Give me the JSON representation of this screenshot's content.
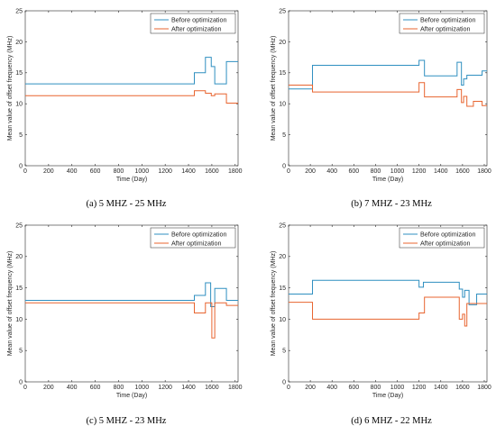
{
  "colors": {
    "before": "#2f8fc0",
    "after": "#e8642f",
    "axis": "#262626"
  },
  "chart_data": [
    {
      "type": "line",
      "caption": "(a) 5 MHZ - 25 MHz",
      "xlabel": "Time (Day)",
      "ylabel": "Mean value of offset frequency (MHz)",
      "xlim": [
        0,
        1825
      ],
      "ylim": [
        0,
        25
      ],
      "xticks": [
        0,
        200,
        400,
        600,
        800,
        1000,
        1200,
        1400,
        1600,
        1800
      ],
      "yticks": [
        0,
        5,
        10,
        15,
        20,
        25
      ],
      "grid": false,
      "legend": "top-right",
      "series": [
        {
          "name": "Before optimization",
          "color": "before",
          "points": [
            [
              0,
              13.2
            ],
            [
              1450,
              13.2
            ],
            [
              1450,
              15.0
            ],
            [
              1545,
              15.0
            ],
            [
              1545,
              17.5
            ],
            [
              1595,
              17.5
            ],
            [
              1595,
              16.0
            ],
            [
              1625,
              16.0
            ],
            [
              1625,
              13.2
            ],
            [
              1725,
              13.2
            ],
            [
              1725,
              16.8
            ],
            [
              1825,
              16.8
            ]
          ]
        },
        {
          "name": "After optimization",
          "color": "after",
          "points": [
            [
              0,
              11.3
            ],
            [
              1450,
              11.3
            ],
            [
              1450,
              12.1
            ],
            [
              1545,
              12.1
            ],
            [
              1545,
              11.7
            ],
            [
              1595,
              11.7
            ],
            [
              1595,
              11.3
            ],
            [
              1625,
              11.3
            ],
            [
              1625,
              11.6
            ],
            [
              1725,
              11.6
            ],
            [
              1725,
              10.1
            ],
            [
              1825,
              10.1
            ]
          ]
        }
      ]
    },
    {
      "type": "line",
      "caption": "(b) 7 MHZ - 23 MHz",
      "xlabel": "Time (Day)",
      "ylabel": "Mean value of offset frequency (MHz)",
      "xlim": [
        0,
        1825
      ],
      "ylim": [
        0,
        25
      ],
      "xticks": [
        0,
        200,
        400,
        600,
        800,
        1000,
        1200,
        1400,
        1600,
        1800
      ],
      "yticks": [
        0,
        5,
        10,
        15,
        20,
        25
      ],
      "grid": false,
      "legend": "top-right",
      "series": [
        {
          "name": "Before optimization",
          "color": "before",
          "points": [
            [
              0,
              12.4
            ],
            [
              220,
              12.4
            ],
            [
              220,
              16.2
            ],
            [
              1200,
              16.2
            ],
            [
              1200,
              17.0
            ],
            [
              1250,
              17.0
            ],
            [
              1250,
              14.5
            ],
            [
              1550,
              14.5
            ],
            [
              1550,
              16.7
            ],
            [
              1590,
              16.7
            ],
            [
              1590,
              13.0
            ],
            [
              1610,
              13.0
            ],
            [
              1610,
              14.0
            ],
            [
              1640,
              14.0
            ],
            [
              1640,
              14.6
            ],
            [
              1780,
              14.6
            ],
            [
              1780,
              15.3
            ],
            [
              1825,
              15.3
            ]
          ]
        },
        {
          "name": "After optimization",
          "color": "after",
          "points": [
            [
              0,
              13.0
            ],
            [
              220,
              13.0
            ],
            [
              220,
              11.9
            ],
            [
              1200,
              11.9
            ],
            [
              1200,
              13.4
            ],
            [
              1250,
              13.4
            ],
            [
              1250,
              11.1
            ],
            [
              1550,
              11.1
            ],
            [
              1550,
              12.3
            ],
            [
              1590,
              12.3
            ],
            [
              1590,
              10.2
            ],
            [
              1610,
              10.2
            ],
            [
              1610,
              11.2
            ],
            [
              1640,
              11.2
            ],
            [
              1640,
              9.6
            ],
            [
              1700,
              9.6
            ],
            [
              1700,
              10.4
            ],
            [
              1780,
              10.4
            ],
            [
              1780,
              9.7
            ],
            [
              1825,
              9.7
            ]
          ]
        }
      ]
    },
    {
      "type": "line",
      "caption": "(c) 5 MHZ - 23 MHz",
      "xlabel": "Time (Day)",
      "ylabel": "Mean value of offset frequency (MHz)",
      "xlim": [
        0,
        1825
      ],
      "ylim": [
        0,
        25
      ],
      "xticks": [
        0,
        200,
        400,
        600,
        800,
        1000,
        1200,
        1400,
        1600,
        1800
      ],
      "yticks": [
        0,
        5,
        10,
        15,
        20,
        25
      ],
      "grid": false,
      "legend": "top-right",
      "series": [
        {
          "name": "Before optimization",
          "color": "before",
          "points": [
            [
              0,
              13.0
            ],
            [
              1450,
              13.0
            ],
            [
              1450,
              13.8
            ],
            [
              1545,
              13.8
            ],
            [
              1545,
              15.8
            ],
            [
              1590,
              15.8
            ],
            [
              1590,
              12.0
            ],
            [
              1625,
              12.0
            ],
            [
              1625,
              14.9
            ],
            [
              1725,
              14.9
            ],
            [
              1725,
              13.0
            ],
            [
              1825,
              13.0
            ]
          ]
        },
        {
          "name": "After optimization",
          "color": "after",
          "points": [
            [
              0,
              12.6
            ],
            [
              1450,
              12.6
            ],
            [
              1450,
              11.0
            ],
            [
              1545,
              11.0
            ],
            [
              1545,
              12.6
            ],
            [
              1600,
              12.6
            ],
            [
              1600,
              7.0
            ],
            [
              1625,
              7.0
            ],
            [
              1625,
              12.6
            ],
            [
              1725,
              12.6
            ],
            [
              1725,
              12.2
            ],
            [
              1825,
              12.2
            ]
          ]
        }
      ]
    },
    {
      "type": "line",
      "caption": "(d) 6 MHZ - 22 MHz",
      "xlabel": "Time (Day)",
      "ylabel": "Mean value of offset frequency (MHz)",
      "xlim": [
        0,
        1825
      ],
      "ylim": [
        0,
        25
      ],
      "xticks": [
        0,
        200,
        400,
        600,
        800,
        1000,
        1200,
        1400,
        1600,
        1800
      ],
      "yticks": [
        0,
        5,
        10,
        15,
        20,
        25
      ],
      "grid": false,
      "legend": "top-right",
      "series": [
        {
          "name": "Before optimization",
          "color": "before",
          "points": [
            [
              0,
              14.0
            ],
            [
              220,
              14.0
            ],
            [
              220,
              16.2
            ],
            [
              1200,
              16.2
            ],
            [
              1200,
              15.1
            ],
            [
              1240,
              15.1
            ],
            [
              1240,
              15.9
            ],
            [
              1570,
              15.9
            ],
            [
              1570,
              14.8
            ],
            [
              1600,
              14.8
            ],
            [
              1600,
              13.5
            ],
            [
              1620,
              13.5
            ],
            [
              1620,
              14.6
            ],
            [
              1660,
              14.6
            ],
            [
              1660,
              12.3
            ],
            [
              1730,
              12.3
            ],
            [
              1730,
              14.0
            ],
            [
              1825,
              14.0
            ]
          ]
        },
        {
          "name": "After optimization",
          "color": "after",
          "points": [
            [
              0,
              12.7
            ],
            [
              220,
              12.7
            ],
            [
              220,
              10.0
            ],
            [
              1200,
              10.0
            ],
            [
              1200,
              11.0
            ],
            [
              1250,
              11.0
            ],
            [
              1250,
              13.5
            ],
            [
              1570,
              13.5
            ],
            [
              1570,
              10.0
            ],
            [
              1600,
              10.0
            ],
            [
              1600,
              10.8
            ],
            [
              1620,
              10.8
            ],
            [
              1620,
              8.9
            ],
            [
              1640,
              8.9
            ],
            [
              1640,
              12.5
            ],
            [
              1825,
              12.5
            ]
          ]
        }
      ]
    }
  ]
}
